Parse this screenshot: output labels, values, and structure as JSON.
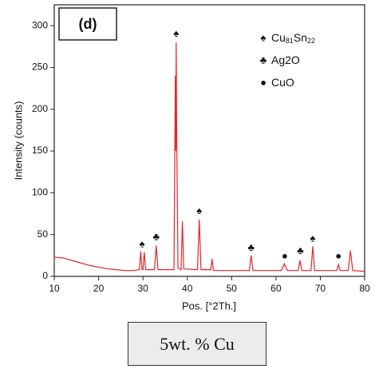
{
  "chart_data": {
    "type": "line",
    "panel_label": "(d)",
    "xlabel": "Pos. [°2Th.]",
    "ylabel": "Intensity (counts)",
    "xlim": [
      10,
      80
    ],
    "xticks": [
      10,
      20,
      30,
      40,
      50,
      60,
      70,
      80
    ],
    "ylim": [
      0,
      325
    ],
    "yticks": [
      0,
      50,
      100,
      150,
      200,
      250,
      300
    ],
    "series": [
      {
        "name": "5wt. % Cu",
        "color": "#e3262a",
        "x": [
          10,
          12,
          14,
          16,
          18,
          20,
          22,
          24,
          26,
          28,
          29.2,
          29.5,
          29.8,
          30.0,
          30.3,
          30.6,
          32.6,
          33.0,
          33.4,
          37.0,
          37.3,
          37.4,
          37.5,
          37.6,
          37.9,
          38.6,
          38.9,
          39.2,
          42.3,
          42.7,
          43.1,
          45.3,
          45.6,
          45.9,
          54.0,
          54.4,
          54.8,
          61.2,
          61.9,
          62.6,
          65.0,
          65.4,
          65.8,
          67.9,
          68.3,
          68.7,
          73.7,
          74.1,
          74.5,
          76.3,
          76.8,
          77.3,
          80
        ],
        "values": [
          23,
          22,
          19,
          16,
          13,
          11,
          9,
          8,
          7,
          7,
          8,
          30,
          8,
          8,
          29,
          8,
          8,
          37,
          8,
          8,
          240,
          150,
          280,
          180,
          10,
          8,
          66,
          9,
          8,
          68,
          8,
          8,
          21,
          7,
          7,
          25,
          7,
          7,
          15,
          7,
          7,
          19,
          7,
          7,
          36,
          7,
          7,
          14,
          7,
          7,
          31,
          7,
          6
        ]
      }
    ],
    "legend": [
      {
        "symbol": "♠",
        "parts": [
          "Cu",
          "81",
          "Sn",
          "22"
        ]
      },
      {
        "symbol": "♣",
        "parts": [
          "Ag2O"
        ]
      },
      {
        "symbol": "●",
        "parts": [
          "CuO"
        ]
      }
    ],
    "annotations": [
      {
        "text": "♠",
        "x": 29.8,
        "y": 38
      },
      {
        "text": "♣",
        "x": 33,
        "y": 47
      },
      {
        "text": "♠",
        "x": 37.5,
        "y": 290
      },
      {
        "text": "♠",
        "x": 42.7,
        "y": 78
      },
      {
        "text": "♣",
        "x": 54.4,
        "y": 34
      },
      {
        "text": "●",
        "x": 62,
        "y": 24
      },
      {
        "text": "♣",
        "x": 65.5,
        "y": 30
      },
      {
        "text": "♠",
        "x": 68.3,
        "y": 45
      },
      {
        "text": "●",
        "x": 74.1,
        "y": 24
      }
    ],
    "caption": "5wt. % Cu"
  }
}
